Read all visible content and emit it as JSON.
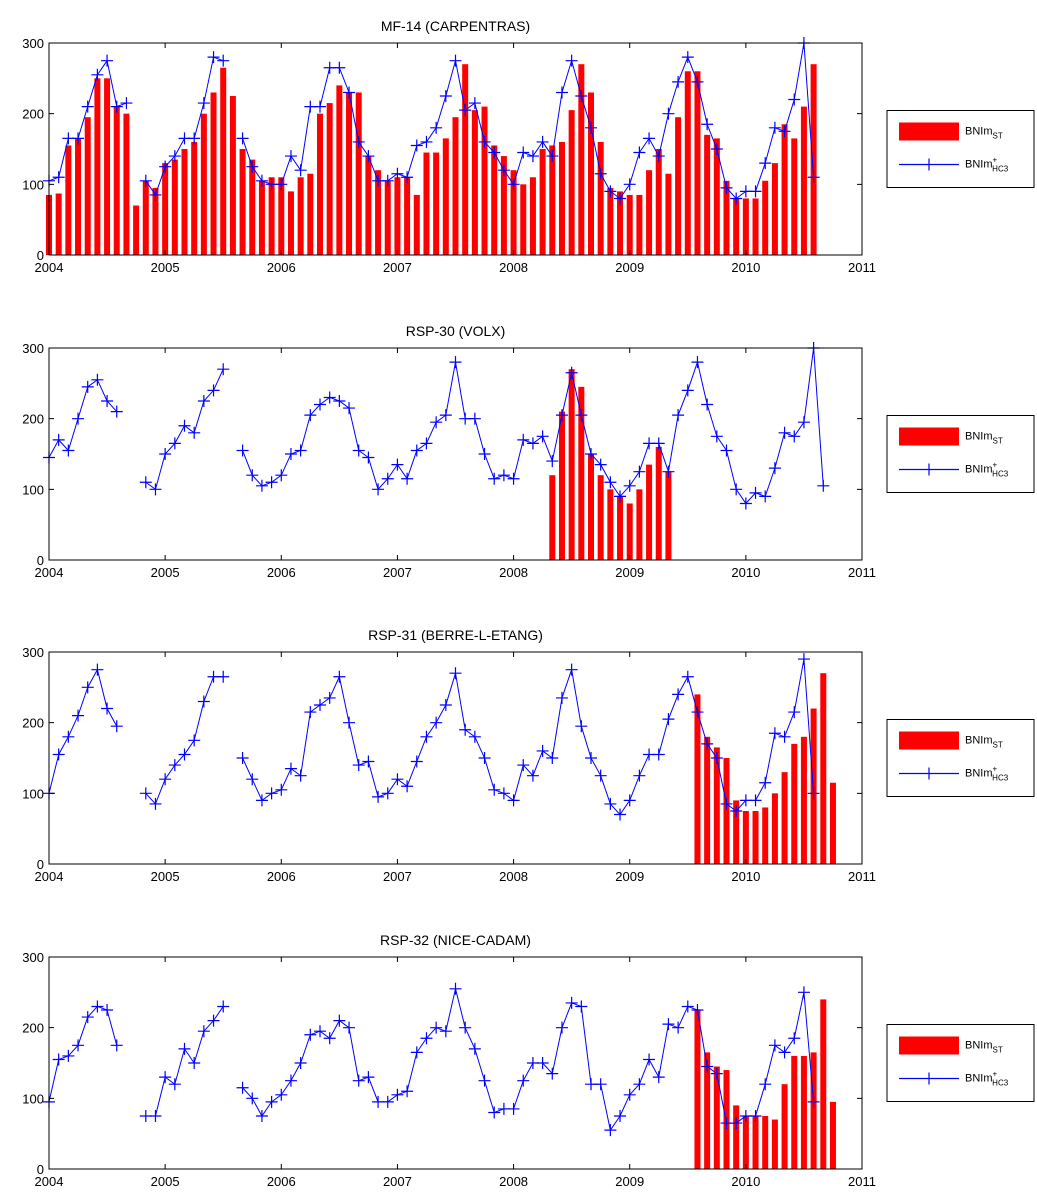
{
  "colors": {
    "bar": "#ff0000",
    "line": "#0000ff",
    "axis": "#000000",
    "background": "#ffffff"
  },
  "legend": {
    "entries": [
      {
        "base": "BNIm",
        "sub": "ST",
        "sup": "",
        "kind": "bar"
      },
      {
        "base": "BNIm",
        "sub": "HC3",
        "sup": "+",
        "kind": "line"
      }
    ],
    "placement": "right"
  },
  "chart_data": [
    {
      "type": "bar+line",
      "title": "MF-14 (CARPENTRAS)",
      "xlim": [
        2004,
        2011
      ],
      "ylim": [
        0,
        300
      ],
      "xticks": [
        "2004",
        "2005",
        "2006",
        "2007",
        "2008",
        "2009",
        "2010",
        "2011"
      ],
      "yticks": [
        "0",
        "100",
        "200",
        "300"
      ],
      "x_start": 2004.0,
      "x_step_months": 1,
      "series": [
        {
          "kind": "bar",
          "start_month_index": 0,
          "values": [
            85,
            87,
            155,
            165,
            195,
            250,
            250,
            210,
            200,
            70,
            105,
            95,
            130,
            135,
            150,
            160,
            200,
            230,
            265,
            225,
            150,
            135,
            105,
            110,
            110,
            90,
            110,
            115,
            200,
            215,
            240,
            230,
            230,
            140,
            120,
            105,
            110,
            110,
            85,
            145,
            145,
            165,
            195,
            270,
            205,
            210,
            155,
            140,
            120,
            100,
            110,
            150,
            155,
            160,
            205,
            270,
            230,
            160,
            95,
            90,
            85,
            85,
            120,
            150,
            115,
            195,
            260,
            260,
            170,
            165,
            105,
            80,
            80,
            80,
            105,
            130,
            185,
            165,
            210,
            270
          ]
        },
        {
          "kind": "line",
          "start_month_index": 0,
          "values": [
            105,
            110,
            165,
            165,
            210,
            255,
            275,
            210,
            215,
            null,
            105,
            85,
            125,
            140,
            165,
            165,
            215,
            280,
            275,
            null,
            165,
            125,
            105,
            100,
            100,
            140,
            120,
            210,
            210,
            265,
            265,
            230,
            160,
            140,
            105,
            105,
            115,
            110,
            155,
            160,
            180,
            225,
            275,
            205,
            215,
            160,
            145,
            120,
            100,
            145,
            140,
            160,
            140,
            230,
            275,
            225,
            180,
            115,
            90,
            80,
            100,
            145,
            165,
            140,
            200,
            245,
            280,
            245,
            185,
            150,
            95,
            80,
            90,
            90,
            130,
            180,
            175,
            220,
            300,
            110
          ]
        }
      ]
    },
    {
      "type": "bar+line",
      "title": "RSP-30 (VOLX)",
      "xlim": [
        2004,
        2011
      ],
      "ylim": [
        0,
        300
      ],
      "xticks": [
        "2004",
        "2005",
        "2006",
        "2007",
        "2008",
        "2009",
        "2010",
        "2011"
      ],
      "yticks": [
        "0",
        "100",
        "200",
        "300"
      ],
      "x_start": 2004.0,
      "x_step_months": 1,
      "series": [
        {
          "kind": "bar",
          "start_month_index": 52,
          "values": [
            120,
            210,
            270,
            245,
            150,
            120,
            100,
            90,
            80,
            100,
            135,
            160,
            125
          ]
        },
        {
          "kind": "line",
          "start_month_index": 0,
          "values": [
            145,
            170,
            155,
            200,
            245,
            255,
            225,
            210,
            null,
            null,
            110,
            100,
            150,
            165,
            190,
            180,
            225,
            240,
            270,
            null,
            155,
            120,
            105,
            110,
            120,
            150,
            155,
            205,
            220,
            230,
            225,
            215,
            155,
            145,
            100,
            115,
            135,
            115,
            155,
            165,
            195,
            205,
            280,
            200,
            200,
            150,
            115,
            120,
            115,
            170,
            165,
            175,
            140,
            205,
            265,
            205,
            150,
            135,
            110,
            90,
            105,
            125,
            165,
            165,
            125,
            205,
            240,
            280,
            220,
            175,
            155,
            100,
            80,
            95,
            90,
            130,
            180,
            175,
            195,
            300,
            105
          ]
        }
      ]
    },
    {
      "type": "bar+line",
      "title": "RSP-31 (BERRE-L-ETANG)",
      "xlim": [
        2004,
        2011
      ],
      "ylim": [
        0,
        300
      ],
      "xticks": [
        "2004",
        "2005",
        "2006",
        "2007",
        "2008",
        "2009",
        "2010",
        "2011"
      ],
      "yticks": [
        "0",
        "100",
        "200",
        "300"
      ],
      "x_start": 2004.0,
      "x_step_months": 1,
      "series": [
        {
          "kind": "bar",
          "start_month_index": 67,
          "values": [
            240,
            180,
            165,
            150,
            90,
            75,
            75,
            80,
            100,
            130,
            170,
            180,
            220,
            270,
            115
          ]
        },
        {
          "kind": "line",
          "start_month_index": 0,
          "values": [
            100,
            155,
            180,
            210,
            250,
            275,
            220,
            195,
            null,
            null,
            100,
            85,
            120,
            140,
            155,
            175,
            230,
            265,
            265,
            null,
            150,
            120,
            90,
            100,
            105,
            135,
            125,
            215,
            225,
            235,
            265,
            200,
            140,
            145,
            95,
            100,
            120,
            110,
            145,
            180,
            200,
            225,
            270,
            190,
            180,
            150,
            105,
            100,
            90,
            140,
            125,
            160,
            150,
            235,
            275,
            195,
            150,
            125,
            85,
            70,
            90,
            125,
            155,
            155,
            205,
            240,
            265,
            215,
            170,
            150,
            85,
            75,
            90,
            90,
            115,
            185,
            180,
            215,
            290,
            100
          ]
        }
      ]
    },
    {
      "type": "bar+line",
      "title": "RSP-32 (NICE-CADAM)",
      "xlim": [
        2004,
        2011
      ],
      "ylim": [
        0,
        300
      ],
      "xticks": [
        "2004",
        "2005",
        "2006",
        "2007",
        "2008",
        "2009",
        "2010",
        "2011"
      ],
      "yticks": [
        "0",
        "100",
        "200",
        "300"
      ],
      "x_start": 2004.0,
      "x_step_months": 1,
      "series": [
        {
          "kind": "bar",
          "start_month_index": 67,
          "values": [
            225,
            165,
            145,
            140,
            90,
            75,
            75,
            75,
            70,
            120,
            160,
            160,
            165,
            240,
            95
          ]
        },
        {
          "kind": "line",
          "start_month_index": 0,
          "values": [
            95,
            155,
            160,
            175,
            215,
            230,
            225,
            175,
            null,
            null,
            75,
            75,
            130,
            120,
            170,
            150,
            195,
            210,
            230,
            null,
            115,
            100,
            75,
            95,
            105,
            125,
            150,
            190,
            195,
            185,
            210,
            200,
            125,
            130,
            95,
            95,
            105,
            110,
            165,
            185,
            200,
            195,
            255,
            200,
            170,
            125,
            80,
            85,
            85,
            125,
            150,
            150,
            135,
            200,
            235,
            230,
            120,
            120,
            55,
            75,
            105,
            120,
            155,
            130,
            205,
            200,
            230,
            225,
            145,
            135,
            65,
            65,
            75,
            75,
            120,
            175,
            165,
            185,
            250,
            95
          ]
        }
      ]
    }
  ]
}
